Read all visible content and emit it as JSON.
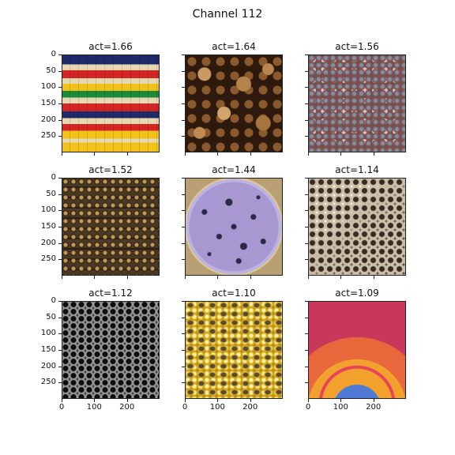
{
  "title": "Channel 112",
  "panels": [
    {
      "label": "act=1.66",
      "image": "abacus",
      "class": "abacus"
    },
    {
      "label": "act=1.64",
      "image": "stacked-log-ends",
      "class": "logs"
    },
    {
      "label": "act=1.56",
      "image": "bottle-caps",
      "class": "caps"
    },
    {
      "label": "act=1.52",
      "image": "stacked-cans",
      "class": "cans"
    },
    {
      "label": "act=1.44",
      "image": "petri-dish-colonies",
      "class": "dish"
    },
    {
      "label": "act=1.14",
      "image": "porous-sponge",
      "class": "sponge"
    },
    {
      "label": "act=1.12",
      "image": "metal-hexagonal-mesh",
      "class": "hexgrid"
    },
    {
      "label": "act=1.10",
      "image": "bees-on-honeycomb",
      "class": "bees"
    },
    {
      "label": "act=1.09",
      "image": "hot-air-balloon-interior",
      "class": "balloon"
    }
  ],
  "axis": {
    "yticks": [
      "0",
      "50",
      "100",
      "150",
      "200",
      "250"
    ],
    "xticks": [
      "0",
      "100",
      "200"
    ]
  }
}
